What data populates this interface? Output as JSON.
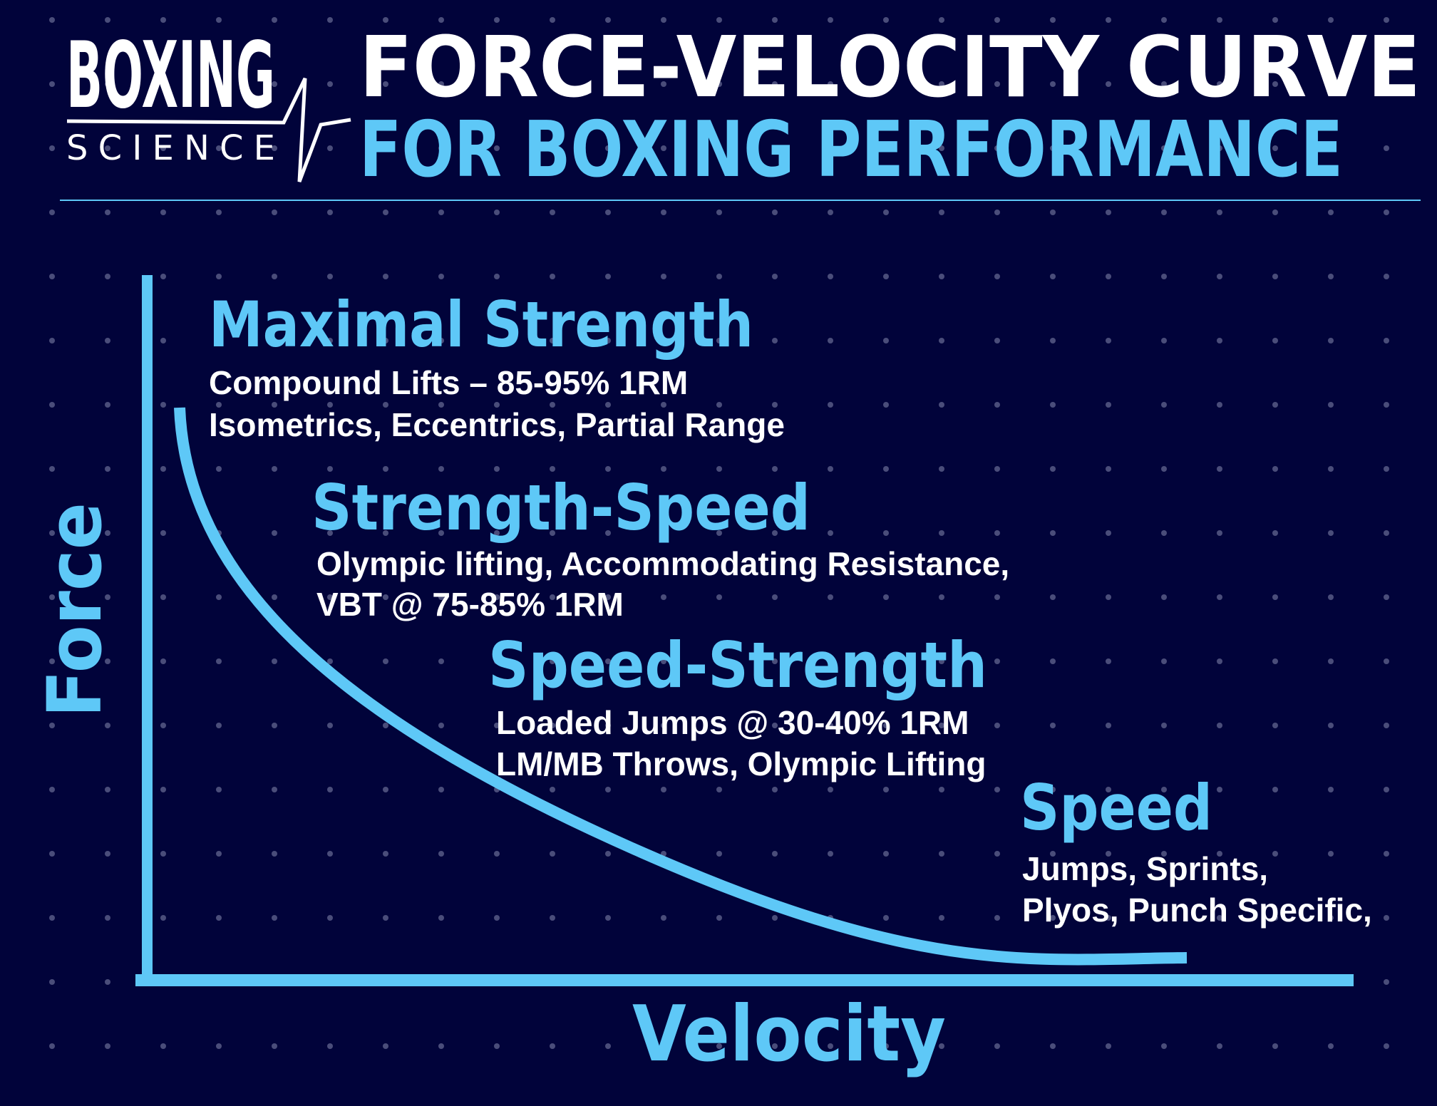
{
  "logo": {
    "line1": "BOXING",
    "line2": "SCIENCE"
  },
  "title": {
    "line1": "FORCE-VELOCITY CURVE",
    "line2": "FOR BOXING PERFORMANCE"
  },
  "axes": {
    "y_label": "Force",
    "x_label": "Velocity"
  },
  "zones": [
    {
      "heading": "Maximal Strength",
      "lines": [
        "Compound Lifts – 85-95% 1RM",
        "Isometrics, Eccentrics, Partial Range"
      ]
    },
    {
      "heading": "Strength-Speed",
      "lines": [
        "Olympic lifting, Accommodating Resistance,",
        "VBT @ 75-85% 1RM"
      ]
    },
    {
      "heading": "Speed-Strength",
      "lines": [
        "Loaded Jumps @ 30-40% 1RM",
        "LM/MB Throws, Olympic Lifting"
      ]
    },
    {
      "heading": "Speed",
      "lines": [
        "Jumps, Sprints,",
        "Plyos, Punch Specific,"
      ]
    }
  ],
  "colors": {
    "background": "#01033a",
    "accent": "#5ec8f7",
    "text": "#ffffff"
  }
}
